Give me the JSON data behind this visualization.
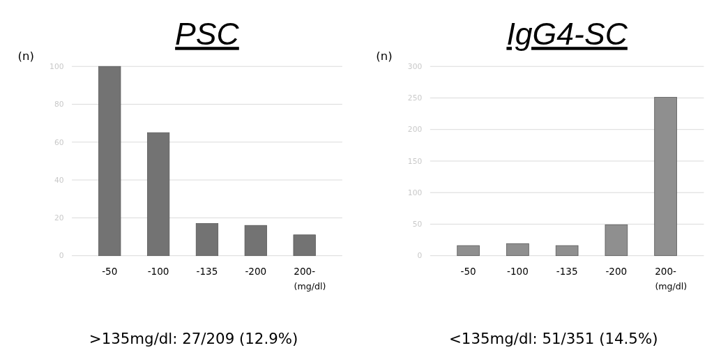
{
  "chart_data": [
    {
      "type": "bar",
      "title": "PSC",
      "ylabel": "(n)",
      "xlabel": "(mg/dl)",
      "categories": [
        "-50",
        "-100",
        "-135",
        "-200",
        "200-"
      ],
      "values": [
        100,
        65,
        17,
        16,
        11
      ],
      "color": "#737373",
      "ylim": [
        0,
        100
      ],
      "yticks": [
        0,
        20,
        40,
        60,
        80,
        100
      ],
      "grid": "y",
      "annotations": [
        ">135mg/dl: 27/209 (12.9%)"
      ]
    },
    {
      "type": "bar",
      "title": "IgG4-SC",
      "ylabel": "(n)",
      "xlabel": "(mg/dl)",
      "categories": [
        "-50",
        "-100",
        "-135",
        "-200",
        "200-"
      ],
      "values": [
        16,
        19,
        16,
        49,
        251
      ],
      "color": "#8f8f8f",
      "ylim": [
        0,
        300
      ],
      "yticks": [
        0,
        50,
        100,
        150,
        200,
        250,
        300
      ],
      "grid": "y",
      "annotations": [
        "<135mg/dl: 51/351 (14.5%)"
      ]
    }
  ]
}
